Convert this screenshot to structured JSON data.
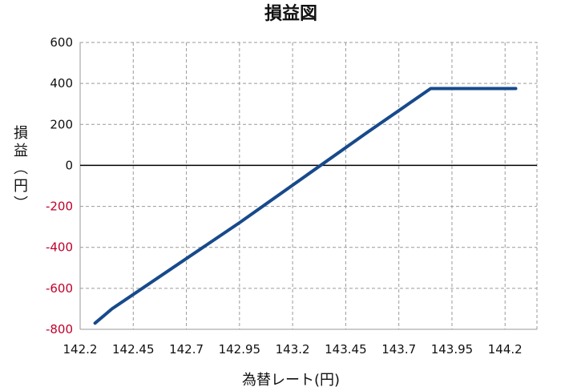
{
  "chart_data": {
    "type": "line",
    "title": "損益図",
    "xlabel": "為替レート(円)",
    "ylabel": "損益(円)",
    "xlim": [
      142.2,
      144.35
    ],
    "ylim": [
      -800,
      600
    ],
    "x_ticks": [
      142.2,
      142.45,
      142.7,
      142.95,
      143.2,
      143.45,
      143.7,
      143.95,
      144.2
    ],
    "x_tick_labels": [
      "142.2",
      "142.45",
      "142.7",
      "142.95",
      "143.2",
      "143.45",
      "143.7",
      "143.95",
      "144.2"
    ],
    "y_ticks": [
      600,
      400,
      200,
      0,
      -200,
      -400,
      -600,
      -800
    ],
    "y_tick_labels": [
      "600",
      "400",
      "200",
      "0",
      "-200",
      "-400",
      "-600",
      "-800"
    ],
    "negative_tick_color": "#c0002a",
    "grid": true,
    "series": [
      {
        "color": "#174a8c",
        "points": [
          {
            "x": 142.27,
            "y": -770
          },
          {
            "x": 142.35,
            "y": -700
          },
          {
            "x": 142.95,
            "y": -280
          },
          {
            "x": 143.55,
            "y": 160
          },
          {
            "x": 143.85,
            "y": 375
          },
          {
            "x": 144.25,
            "y": 375
          }
        ]
      }
    ]
  }
}
